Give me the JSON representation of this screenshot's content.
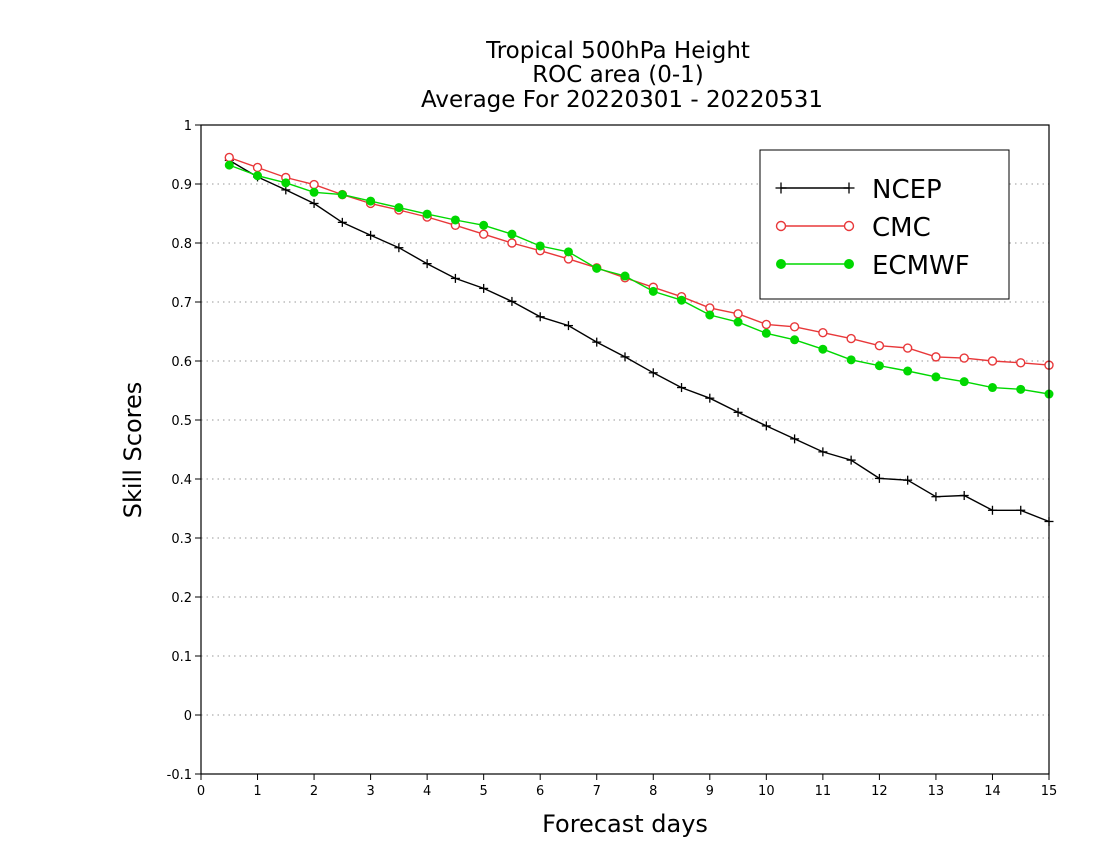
{
  "chart_data": {
    "type": "line",
    "title": [
      "Tropical 500hPa Height",
      "ROC area (0-1)",
      "Average For 20220301 - 20220531"
    ],
    "xlabel": "Forecast days",
    "ylabel": "Skill Scores",
    "xlim": [
      0,
      15
    ],
    "ylim": [
      -0.1,
      1
    ],
    "xticks": [
      0,
      1,
      2,
      3,
      4,
      5,
      6,
      7,
      8,
      9,
      10,
      11,
      12,
      13,
      14,
      15
    ],
    "xtick_labels": [
      "0",
      "1",
      "2",
      "3",
      "4",
      "5",
      "6",
      "7",
      "8",
      "9",
      "10",
      "11",
      "12",
      "13",
      "14",
      "15"
    ],
    "yticks": [
      -0.1,
      0,
      0.1,
      0.2,
      0.3,
      0.4,
      0.5,
      0.6,
      0.7,
      0.8,
      0.9,
      1
    ],
    "ytick_labels": [
      "-0.1",
      "0",
      "0.1",
      "0.2",
      "0.3",
      "0.4",
      "0.5",
      "0.6",
      "0.7",
      "0.8",
      "0.9",
      "1"
    ],
    "grid": "horizontal dotted",
    "legend_position": "top-right",
    "x": [
      0.5,
      1,
      1.5,
      2,
      2.5,
      3,
      3.5,
      4,
      4.5,
      5,
      5.5,
      6,
      6.5,
      7,
      7.5,
      8,
      8.5,
      9,
      9.5,
      10,
      10.5,
      11,
      11.5,
      12,
      12.5,
      13,
      13.5,
      14,
      14.5,
      15
    ],
    "series": [
      {
        "name": "NCEP",
        "color": "#000000",
        "marker": "plus",
        "values": [
          0.94,
          0.912,
          0.89,
          0.867,
          0.835,
          0.813,
          0.792,
          0.765,
          0.74,
          0.723,
          0.701,
          0.675,
          0.66,
          0.632,
          0.607,
          0.58,
          0.555,
          0.537,
          0.513,
          0.49,
          0.468,
          0.446,
          0.432,
          0.401,
          0.398,
          0.37,
          0.372,
          0.347,
          0.347,
          0.328
        ]
      },
      {
        "name": "CMC",
        "color": "#e8383a",
        "marker": "open-circle",
        "values": [
          0.945,
          0.928,
          0.911,
          0.899,
          0.882,
          0.867,
          0.856,
          0.844,
          0.83,
          0.815,
          0.8,
          0.787,
          0.773,
          0.758,
          0.741,
          0.725,
          0.709,
          0.69,
          0.68,
          0.662,
          0.658,
          0.648,
          0.638,
          0.626,
          0.622,
          0.607,
          0.605,
          0.6,
          0.597,
          0.593
        ]
      },
      {
        "name": "ECMWF",
        "color": "#00d800",
        "marker": "filled-circle",
        "values": [
          0.932,
          0.914,
          0.902,
          0.886,
          0.882,
          0.871,
          0.86,
          0.849,
          0.839,
          0.83,
          0.815,
          0.795,
          0.785,
          0.757,
          0.744,
          0.718,
          0.703,
          0.678,
          0.666,
          0.647,
          0.636,
          0.62,
          0.602,
          0.592,
          0.583,
          0.573,
          0.565,
          0.555,
          0.552,
          0.544
        ]
      }
    ]
  }
}
